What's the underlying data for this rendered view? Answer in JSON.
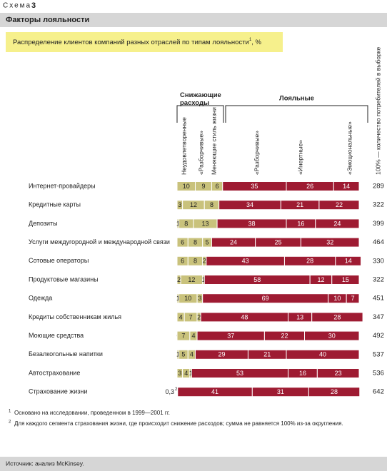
{
  "chart_data": {
    "type": "stacked_bar_horizontal",
    "label": "Схема",
    "number": "3",
    "title": "Факторы лояльности",
    "subtitle": "Распределение клиентов компаний разных отраслей по типам лояльности",
    "subtitle_note": "1",
    "subtitle_unit": ", %",
    "groups": [
      {
        "name": "Снижающие расходы",
        "series": [
          0,
          1,
          2
        ]
      },
      {
        "name": "Лояльные",
        "series": [
          3,
          4,
          5
        ]
      }
    ],
    "categories": [
      "Интернет-провайдеры",
      "Кредитные карты",
      "Депозиты",
      "Услуги междугородной и международной связи",
      "Сотовые операторы",
      "Продуктовые магазины",
      "Одежда",
      "Кредиты собственникам жилья",
      "Моющие средства",
      "Безалкогольные напитки",
      "Автострахование",
      "Страхование жизни"
    ],
    "category_notes": [
      null,
      null,
      null,
      null,
      null,
      null,
      null,
      null,
      null,
      null,
      null,
      "2"
    ],
    "series": [
      {
        "name": "Неудовлетворенные",
        "color": "#c9c27c",
        "text_color": "#222222",
        "values": [
          10,
          3,
          1,
          6,
          6,
          2,
          1,
          4,
          0,
          1,
          3,
          0.3
        ],
        "value_labels": [
          "10",
          "3",
          "1",
          "6",
          "6",
          "2",
          "1",
          "4",
          "0",
          "1",
          "3",
          "0,3"
        ]
      },
      {
        "name": "«Разборчивые»",
        "color": "#c9c27c",
        "text_color": "#222222",
        "values": [
          9,
          12,
          8,
          8,
          8,
          12,
          10,
          7,
          7,
          5,
          4,
          null
        ]
      },
      {
        "name": "Меняющие стиль жизни",
        "color": "#c9c27c",
        "text_color": "#222222",
        "values": [
          6,
          8,
          13,
          5,
          2,
          1,
          3,
          2,
          4,
          4,
          1,
          null
        ]
      },
      {
        "name": "«Разборчивые»",
        "color": "#9e1b32",
        "text_color": "#ffffff",
        "values": [
          35,
          34,
          38,
          24,
          43,
          58,
          69,
          48,
          37,
          29,
          53,
          41
        ]
      },
      {
        "name": "«Инертные»",
        "color": "#9e1b32",
        "text_color": "#ffffff",
        "values": [
          26,
          21,
          16,
          25,
          28,
          12,
          10,
          13,
          22,
          21,
          16,
          31
        ]
      },
      {
        "name": "«Эмоциональные»",
        "color": "#9e1b32",
        "text_color": "#ffffff",
        "values": [
          14,
          22,
          24,
          32,
          14,
          15,
          7,
          28,
          30,
          40,
          23,
          28
        ]
      }
    ],
    "sample": {
      "name": "100% — количество потребителей в выборке",
      "values": [
        289,
        322,
        399,
        464,
        330,
        322,
        451,
        347,
        492,
        537,
        536,
        642
      ]
    },
    "footnotes": [
      {
        "marker": "1",
        "text": "Основано на исследовании, проведенном в 1999—2001 гг."
      },
      {
        "marker": "2",
        "text": "Для каждого сегмента страхования жизни, где происходит снижение расходов; сумма не равняется 100% из-за округления."
      }
    ],
    "source": "Источник: анализ McKinsey."
  }
}
